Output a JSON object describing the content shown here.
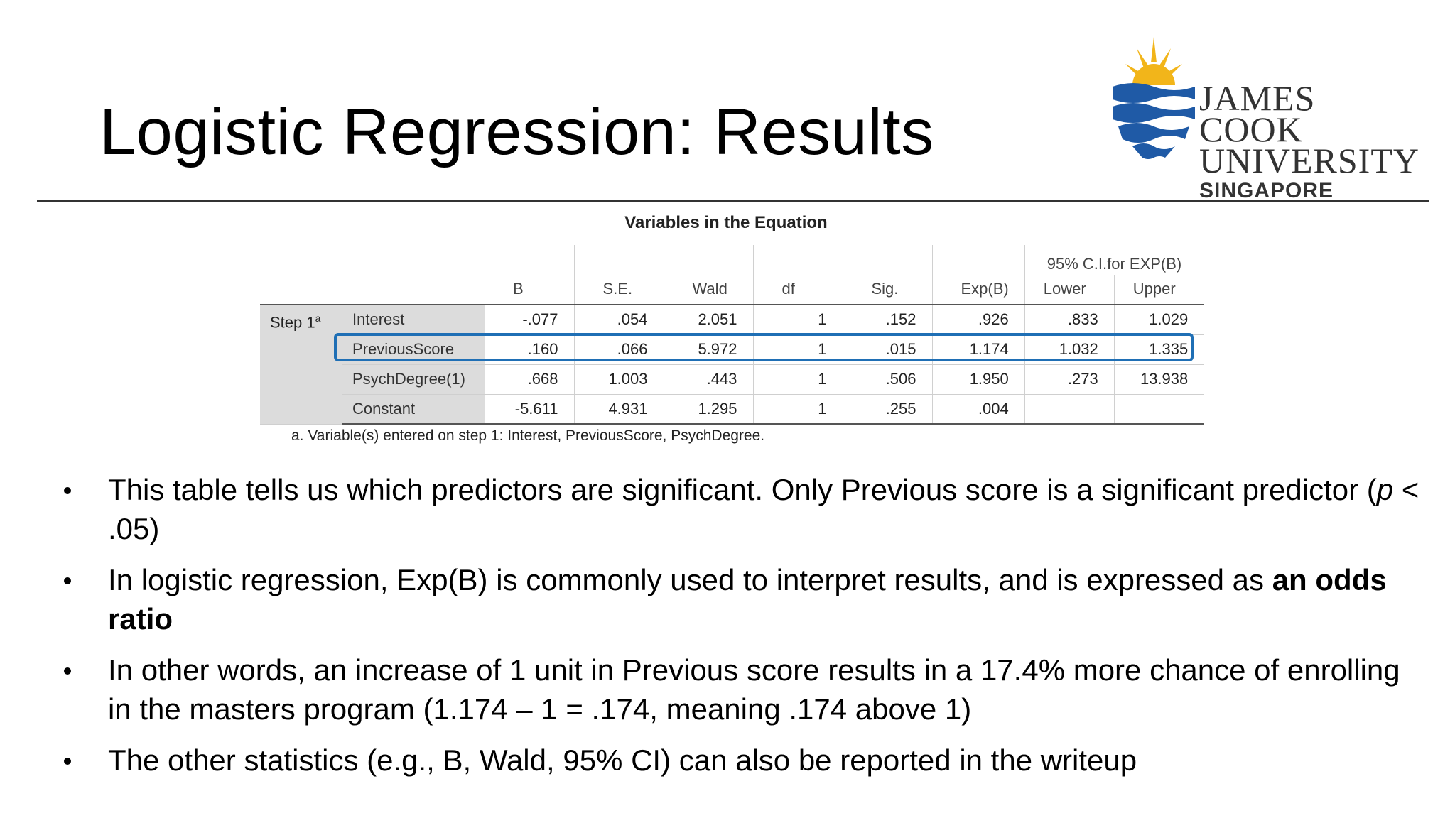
{
  "slide": {
    "title": "Logistic Regression: Results"
  },
  "logo": {
    "line1": "JAMES COOK",
    "line2": "UNIVERSITY",
    "line3": "SINGAPORE",
    "colors": {
      "blue": "#1f5aa6",
      "sun": "#f2b51a",
      "text": "#333333"
    }
  },
  "table": {
    "title": "Variables in the Equation",
    "ci_header": "95% C.I.for EXP(B)",
    "columns": [
      "B",
      "S.E.",
      "Wald",
      "df",
      "Sig.",
      "Exp(B)",
      "Lower",
      "Upper"
    ],
    "step_label": "Step 1",
    "step_sup": "a",
    "rows": [
      {
        "name": "Interest",
        "values": [
          "-.077",
          ".054",
          "2.051",
          "1",
          ".152",
          ".926",
          ".833",
          "1.029"
        ]
      },
      {
        "name": "PreviousScore",
        "values": [
          ".160",
          ".066",
          "5.972",
          "1",
          ".015",
          "1.174",
          "1.032",
          "1.335"
        ]
      },
      {
        "name": "PsychDegree(1)",
        "values": [
          ".668",
          "1.003",
          ".443",
          "1",
          ".506",
          "1.950",
          ".273",
          "13.938"
        ]
      },
      {
        "name": "Constant",
        "values": [
          "-5.611",
          "4.931",
          "1.295",
          "1",
          ".255",
          ".004",
          "",
          ""
        ]
      }
    ],
    "highlighted_row": "PreviousScore",
    "highlight_color": "#1f6fb5",
    "footnote": "a. Variable(s) entered on step 1: Interest, PreviousScore, PsychDegree."
  },
  "bullets": [
    {
      "pre": "This table tells us which predictors are significant. Only Previous score is a significant predictor (",
      "italic": "p",
      "post": " < .05)"
    },
    {
      "pre": "In logistic regression, Exp(B) is commonly used to interpret results, and is expressed as ",
      "bold": "an odds ratio"
    },
    {
      "pre": "In other words, an increase of 1 unit in Previous score results in a 17.4% more chance of enrolling in the masters program (1.174 – 1 = .174, meaning .174 above 1)"
    },
    {
      "pre": "The other statistics (e.g., B, Wald, 95% CI) can also be reported in the writeup"
    }
  ]
}
